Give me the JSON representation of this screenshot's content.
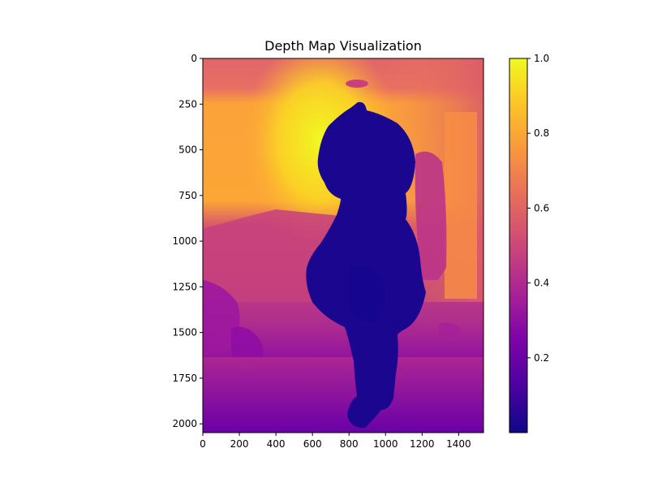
{
  "chart_data": {
    "type": "heatmap",
    "title": "Depth Map Visualization",
    "xlabel": "",
    "ylabel": "",
    "colormap": "plasma",
    "image_extent": {
      "x": [
        0,
        1536
      ],
      "y": [
        2048,
        0
      ]
    },
    "xlim": [
      0,
      1536
    ],
    "ylim": [
      2048,
      0
    ],
    "x_ticks": [
      0,
      200,
      400,
      600,
      800,
      1000,
      1200,
      1400
    ],
    "y_ticks": [
      0,
      250,
      500,
      750,
      1000,
      1250,
      1500,
      1750,
      2000
    ],
    "colorbar": {
      "range": [
        0.0,
        1.0
      ],
      "ticks": [
        0.2,
        0.4,
        0.6,
        0.8,
        1.0
      ],
      "tick_labels": [
        "0.2",
        "0.4",
        "0.6",
        "0.8",
        "1.0"
      ]
    },
    "description_regions": {
      "background_far_wall_value": 0.9,
      "foreground_person_value": 0.05,
      "floor_near_value": 0.3,
      "ceiling_value": 0.55,
      "right_wall_value": 0.6
    },
    "grid": false,
    "colors": {
      "plasma_0": "#0d0887",
      "plasma_25": "#7e03a8",
      "plasma_50": "#cc4778",
      "plasma_75": "#f89540",
      "plasma_100": "#f0f921"
    }
  }
}
